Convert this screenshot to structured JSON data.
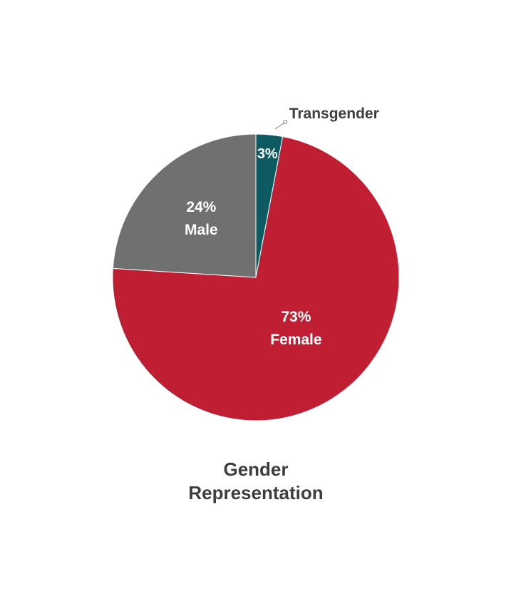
{
  "chart_data": {
    "type": "pie",
    "title": "Gender Representation",
    "categories": [
      "Transgender",
      "Female",
      "Male"
    ],
    "values": [
      3,
      73,
      24
    ],
    "value_labels": [
      "3%",
      "73%",
      "24%"
    ],
    "colors": [
      "#0e5a63",
      "#c01f33",
      "#707070"
    ]
  }
}
